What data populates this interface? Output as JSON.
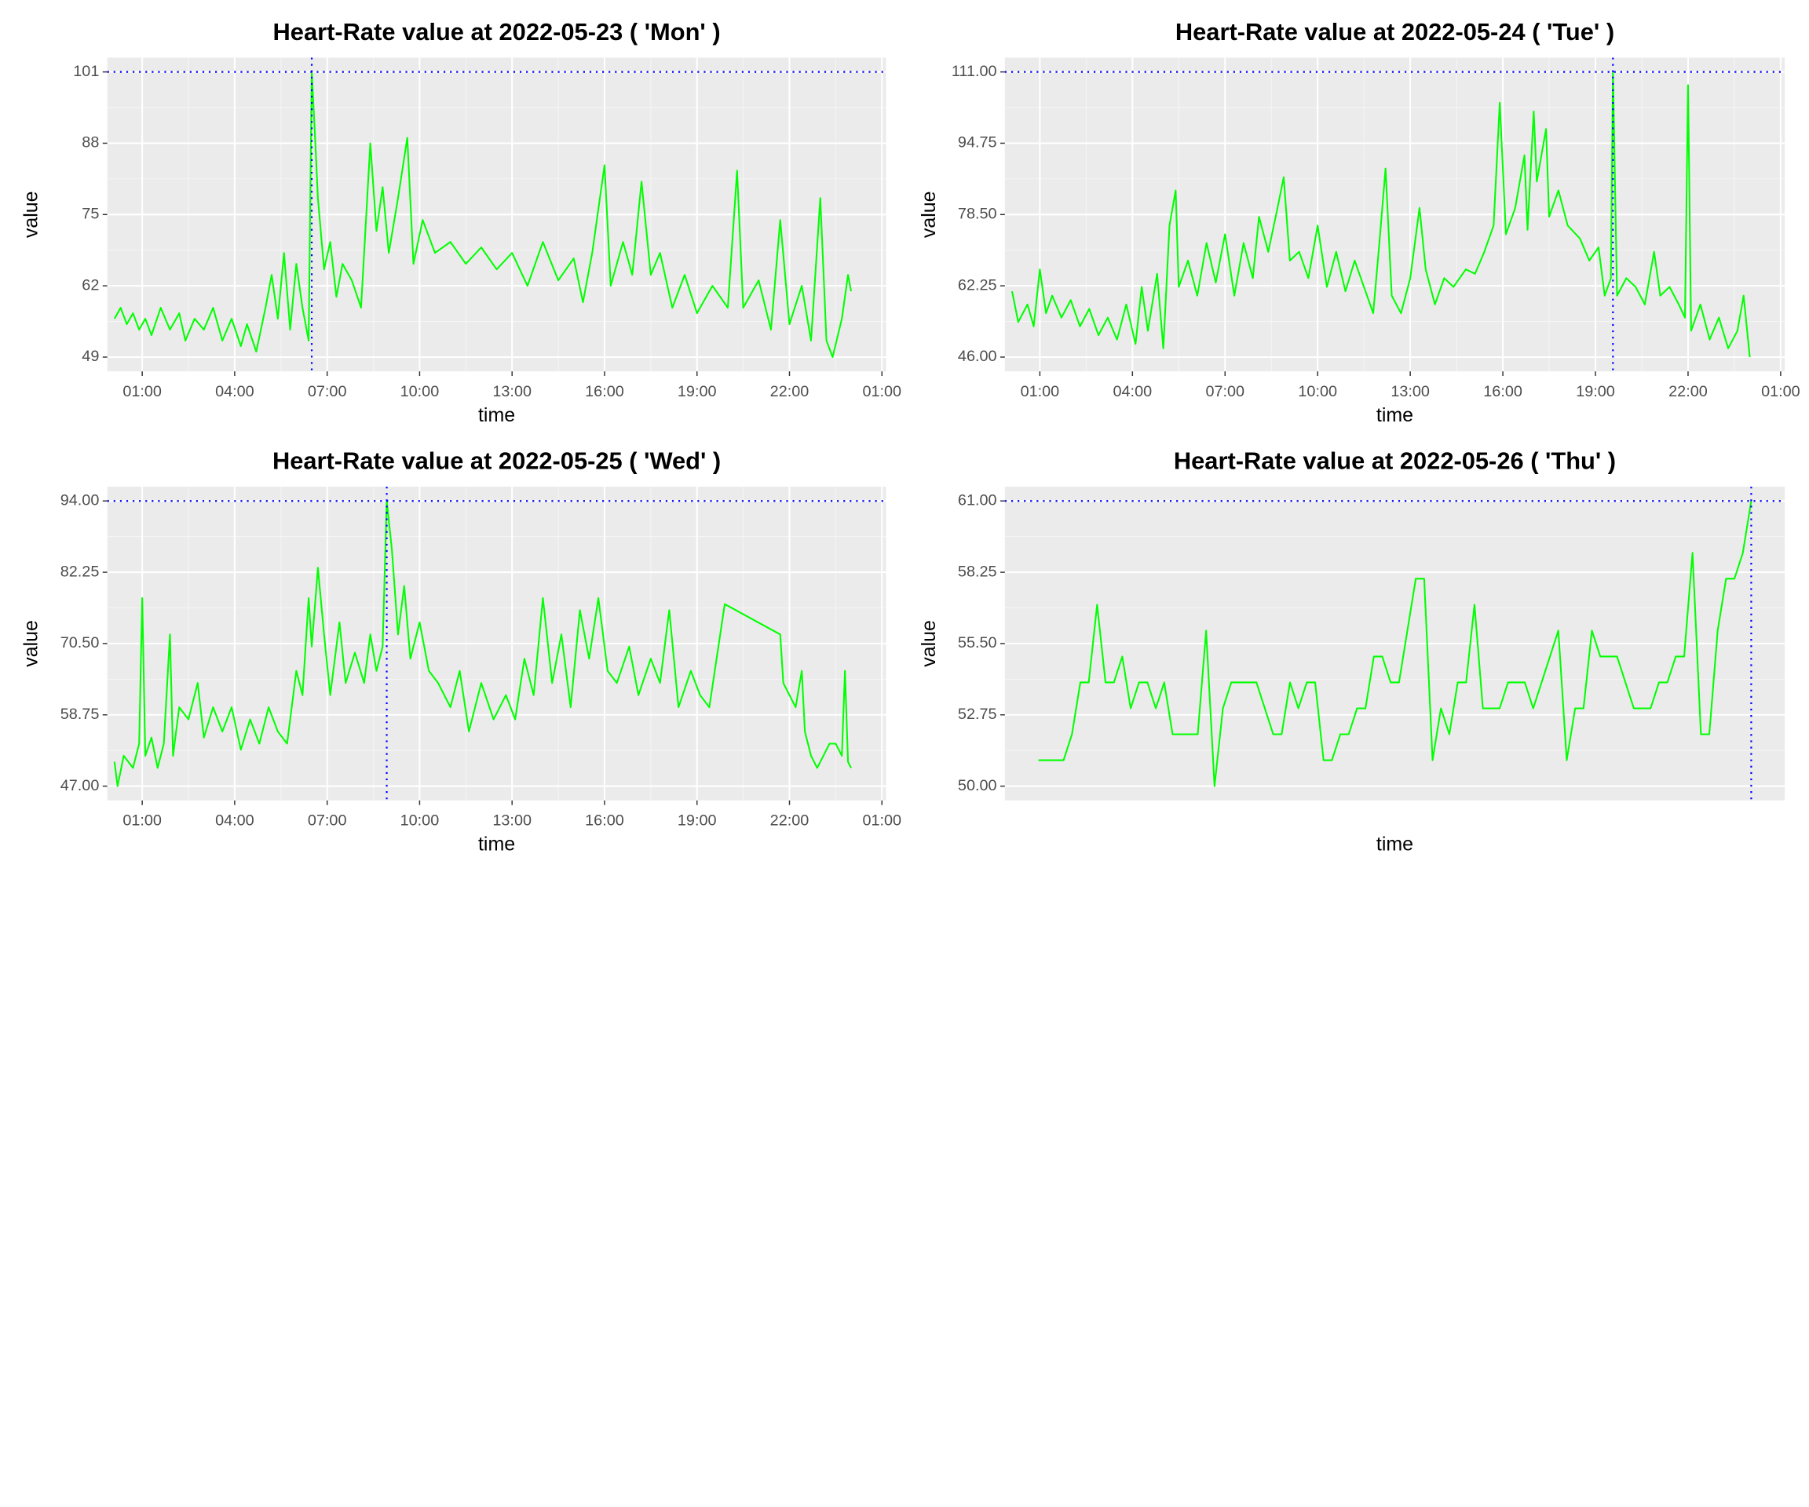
{
  "chart_data": [
    {
      "type": "line",
      "title": "Heart-Rate value at 2022-05-23 ( 'Mon' )",
      "x_label": "time",
      "y_label": "value",
      "color": "#00ff00",
      "grid": true,
      "x": [
        6,
        18,
        30,
        42,
        54,
        66,
        78,
        96,
        114,
        132,
        144,
        162,
        180,
        198,
        216,
        234,
        252,
        264,
        282,
        300,
        312,
        324,
        336,
        348,
        360,
        372,
        384,
        390,
        396,
        402,
        414,
        426,
        438,
        450,
        468,
        486,
        504,
        516,
        528,
        540,
        558,
        576,
        588,
        606,
        630,
        660,
        690,
        720,
        750,
        780,
        810,
        840,
        870,
        900,
        918,
        936,
        960,
        972,
        996,
        1014,
        1032,
        1050,
        1068,
        1092,
        1116,
        1140,
        1170,
        1200,
        1218,
        1230,
        1260,
        1284,
        1302,
        1320,
        1344,
        1362,
        1380,
        1392,
        1404,
        1422,
        1434,
        1440
      ],
      "values": [
        56,
        58,
        55,
        57,
        54,
        56,
        53,
        58,
        54,
        57,
        52,
        56,
        54,
        58,
        52,
        56,
        51,
        55,
        50,
        58,
        64,
        56,
        68,
        54,
        66,
        58,
        52,
        101,
        90,
        78,
        65,
        70,
        60,
        66,
        63,
        58,
        88,
        72,
        80,
        68,
        78,
        89,
        66,
        74,
        68,
        70,
        66,
        69,
        65,
        68,
        62,
        70,
        63,
        67,
        59,
        68,
        84,
        62,
        70,
        64,
        81,
        64,
        68,
        58,
        64,
        57,
        62,
        58,
        83,
        58,
        63,
        54,
        74,
        55,
        62,
        52,
        78,
        52,
        49,
        56,
        64,
        61
      ],
      "xlim": [
        -8,
        1508
      ],
      "xticks": [
        {
          "value": 60,
          "label": "01:00"
        },
        {
          "value": 240,
          "label": "04:00"
        },
        {
          "value": 420,
          "label": "07:00"
        },
        {
          "value": 600,
          "label": "10:00"
        },
        {
          "value": 780,
          "label": "13:00"
        },
        {
          "value": 960,
          "label": "16:00"
        },
        {
          "value": 1140,
          "label": "19:00"
        },
        {
          "value": 1320,
          "label": "22:00"
        },
        {
          "value": 1500,
          "label": "01:00"
        }
      ],
      "ylim": [
        46.4,
        103.6
      ],
      "yticks": [
        49,
        62,
        75,
        88,
        101
      ],
      "reference_lines": {
        "x": 390,
        "y": 101,
        "color": "#0000ff"
      }
    },
    {
      "type": "line",
      "title": "Heart-Rate value at 2022-05-24 ( 'Tue' )",
      "x_label": "time",
      "y_label": "value",
      "color": "#00ff00",
      "grid": true,
      "x": [
        6,
        18,
        36,
        48,
        60,
        72,
        84,
        102,
        120,
        138,
        156,
        174,
        192,
        210,
        228,
        246,
        258,
        270,
        288,
        300,
        312,
        324,
        330,
        348,
        366,
        384,
        402,
        420,
        438,
        456,
        474,
        486,
        504,
        522,
        534,
        546,
        564,
        582,
        600,
        618,
        636,
        654,
        672,
        690,
        708,
        720,
        732,
        744,
        762,
        780,
        798,
        810,
        828,
        846,
        864,
        888,
        906,
        924,
        942,
        954,
        966,
        984,
        1002,
        1008,
        1020,
        1026,
        1044,
        1050,
        1068,
        1086,
        1110,
        1128,
        1146,
        1158,
        1170,
        1174,
        1182,
        1200,
        1218,
        1236,
        1254,
        1266,
        1284,
        1302,
        1314,
        1320,
        1326,
        1344,
        1362,
        1380,
        1398,
        1416,
        1428,
        1440
      ],
      "values": [
        61,
        54,
        58,
        53,
        66,
        56,
        60,
        55,
        59,
        53,
        57,
        51,
        55,
        50,
        58,
        49,
        62,
        52,
        65,
        48,
        76,
        84,
        62,
        68,
        60,
        72,
        63,
        74,
        60,
        72,
        64,
        78,
        70,
        80,
        87,
        68,
        70,
        64,
        76,
        62,
        70,
        61,
        68,
        62,
        56,
        72,
        89,
        60,
        56,
        64,
        80,
        66,
        58,
        64,
        62,
        66,
        65,
        70,
        76,
        104,
        74,
        80,
        92,
        75,
        102,
        86,
        98,
        78,
        84,
        76,
        73,
        68,
        71,
        60,
        64,
        111,
        60,
        64,
        62,
        58,
        70,
        60,
        62,
        58,
        55,
        108,
        52,
        58,
        50,
        55,
        48,
        52,
        60,
        46
      ],
      "xlim": [
        -8,
        1508
      ],
      "xticks": [
        {
          "value": 60,
          "label": "01:00"
        },
        {
          "value": 240,
          "label": "04:00"
        },
        {
          "value": 420,
          "label": "07:00"
        },
        {
          "value": 600,
          "label": "10:00"
        },
        {
          "value": 780,
          "label": "13:00"
        },
        {
          "value": 960,
          "label": "16:00"
        },
        {
          "value": 1140,
          "label": "19:00"
        },
        {
          "value": 1320,
          "label": "22:00"
        },
        {
          "value": 1500,
          "label": "01:00"
        }
      ],
      "ylim": [
        42.75,
        114.25
      ],
      "yticks": [
        {
          "value": 46,
          "label": "46.00"
        },
        {
          "value": 62.25,
          "label": "62.25"
        },
        {
          "value": 78.5,
          "label": "78.50"
        },
        {
          "value": 94.75,
          "label": "94.75"
        },
        {
          "value": 111,
          "label": "111.00"
        }
      ],
      "reference_lines": {
        "x": 1174,
        "y": 111,
        "color": "#0000ff"
      }
    },
    {
      "type": "line",
      "title": "Heart-Rate value at 2022-05-25 ( 'Wed' )",
      "x_label": "time",
      "y_label": "value",
      "color": "#00ff00",
      "grid": true,
      "x": [
        6,
        12,
        24,
        42,
        54,
        60,
        66,
        78,
        90,
        102,
        114,
        120,
        132,
        150,
        168,
        180,
        198,
        216,
        234,
        252,
        270,
        288,
        306,
        324,
        342,
        360,
        372,
        384,
        390,
        402,
        414,
        426,
        444,
        456,
        474,
        492,
        504,
        516,
        528,
        536,
        546,
        558,
        570,
        582,
        600,
        618,
        636,
        660,
        678,
        696,
        720,
        744,
        768,
        786,
        804,
        822,
        840,
        858,
        876,
        894,
        912,
        930,
        948,
        966,
        984,
        1008,
        1026,
        1050,
        1068,
        1086,
        1104,
        1128,
        1146,
        1164,
        1194,
        1302,
        1308,
        1320,
        1332,
        1344,
        1350,
        1362,
        1374,
        1386,
        1398,
        1410,
        1422,
        1428,
        1434,
        1440
      ],
      "values": [
        51,
        47,
        52,
        50,
        54,
        78,
        52,
        55,
        50,
        54,
        72,
        52,
        60,
        58,
        64,
        55,
        60,
        56,
        60,
        53,
        58,
        54,
        60,
        56,
        54,
        66,
        62,
        78,
        70,
        83,
        72,
        62,
        74,
        64,
        69,
        64,
        72,
        66,
        70,
        94,
        86,
        72,
        80,
        68,
        74,
        66,
        64,
        60,
        66,
        56,
        64,
        58,
        62,
        58,
        68,
        62,
        78,
        64,
        72,
        60,
        76,
        68,
        78,
        66,
        64,
        70,
        62,
        68,
        64,
        76,
        60,
        66,
        62,
        60,
        77,
        72,
        64,
        62,
        60,
        66,
        56,
        52,
        50,
        52,
        54,
        54,
        52,
        66,
        51,
        50
      ],
      "xlim": [
        -8,
        1508
      ],
      "xticks": [
        {
          "value": 60,
          "label": "01:00"
        },
        {
          "value": 240,
          "label": "04:00"
        },
        {
          "value": 420,
          "label": "07:00"
        },
        {
          "value": 600,
          "label": "10:00"
        },
        {
          "value": 780,
          "label": "13:00"
        },
        {
          "value": 960,
          "label": "16:00"
        },
        {
          "value": 1140,
          "label": "19:00"
        },
        {
          "value": 1320,
          "label": "22:00"
        },
        {
          "value": 1500,
          "label": "01:00"
        }
      ],
      "ylim": [
        44.65,
        96.35
      ],
      "yticks": [
        {
          "value": 47,
          "label": "47.00"
        },
        {
          "value": 58.75,
          "label": "58.75"
        },
        {
          "value": 70.5,
          "label": "70.50"
        },
        {
          "value": 82.25,
          "label": "82.25"
        },
        {
          "value": 94,
          "label": "94.00"
        }
      ],
      "reference_lines": {
        "x": 536,
        "y": 94,
        "color": "#0000ff"
      }
    },
    {
      "type": "line",
      "title": "Heart-Rate value at 2022-05-26 ( 'Thu' )",
      "x_label": "time",
      "y_label": "value",
      "color": "#00ff00",
      "grid": true,
      "x": [
        0,
        1,
        3,
        4,
        5,
        6,
        7,
        8,
        9,
        10,
        11,
        12,
        13,
        14,
        15,
        16,
        17,
        18,
        19,
        20,
        21,
        22,
        23,
        24,
        25,
        26,
        28,
        29,
        30,
        31,
        32,
        33,
        34,
        35,
        36,
        37,
        38,
        39,
        40,
        41,
        42,
        43,
        45,
        46,
        47,
        48,
        49,
        50,
        51,
        52,
        53,
        54,
        55,
        56,
        57,
        58,
        59,
        62,
        63,
        64,
        65,
        66,
        67,
        68,
        69,
        71,
        72,
        73,
        74,
        75,
        76,
        77,
        78,
        79,
        80,
        81,
        82,
        83,
        84,
        85
      ],
      "values": [
        51,
        51,
        51,
        52,
        54,
        54,
        57,
        54,
        54,
        55,
        53,
        54,
        54,
        53,
        54,
        52,
        52,
        52,
        52,
        56,
        50,
        53,
        54,
        54,
        54,
        54,
        52,
        52,
        54,
        53,
        54,
        54,
        51,
        51,
        52,
        52,
        53,
        53,
        55,
        55,
        54,
        54,
        58,
        58,
        51,
        53,
        52,
        54,
        54,
        57,
        53,
        53,
        53,
        54,
        54,
        54,
        53,
        56,
        51,
        53,
        53,
        56,
        55,
        55,
        55,
        53,
        53,
        53,
        54,
        54,
        55,
        55,
        59,
        52,
        52,
        56,
        58,
        58,
        59,
        61
      ],
      "xlim": [
        -4,
        89
      ],
      "xticks": [],
      "ylim": [
        49.45,
        61.55
      ],
      "yticks": [
        {
          "value": 50,
          "label": "50.00"
        },
        {
          "value": 52.75,
          "label": "52.75"
        },
        {
          "value": 55.5,
          "label": "55.50"
        },
        {
          "value": 58.25,
          "label": "58.25"
        },
        {
          "value": 61,
          "label": "61.00"
        }
      ],
      "reference_lines": {
        "x": 85,
        "y": 61,
        "color": "#0000ff"
      }
    }
  ]
}
